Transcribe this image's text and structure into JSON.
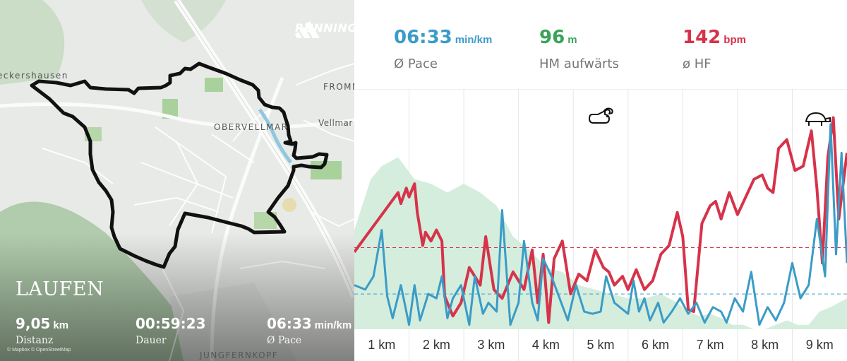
{
  "map": {
    "place_labels": [
      "eckershausen",
      "FROMM",
      "OBERVELLMAR",
      "Vellmar",
      "JUNGFERNKOPF"
    ],
    "brand_text": "RUNNING",
    "brand_logo_icon": "adidas-logo-icon",
    "attribution": "© Mapbox  © OpenStreetMap",
    "route_color": "#111111"
  },
  "summary": {
    "title": "LAUFEN",
    "distance": {
      "value": "9,05",
      "unit": "km",
      "label": "Distanz"
    },
    "duration": {
      "value": "00:59:23",
      "label": "Dauer"
    },
    "pace": {
      "value": "06:33",
      "unit": "min/km",
      "label": "Ø Pace"
    }
  },
  "metrics": {
    "pace": {
      "value": "06:33",
      "unit": "min/km",
      "label": "Ø Pace",
      "color": "#3a9cc7"
    },
    "elevation": {
      "value": "96",
      "unit": "m",
      "label": "HM aufwärts",
      "color": "#3aa35a"
    },
    "heart_rate": {
      "value": "142",
      "unit": "bpm",
      "label": "ø HF",
      "color": "#d6334a"
    }
  },
  "chart_data": {
    "type": "line",
    "xlabel": "",
    "ylabel": "",
    "x_tick_labels": [
      "1 km",
      "2 km",
      "3 km",
      "4 km",
      "5 km",
      "6 km",
      "7 km",
      "8 km",
      "9 km"
    ],
    "xlim": [
      0.5,
      9.5
    ],
    "grid": "vertical",
    "fast_icon": "rabbit-icon",
    "slow_icon": "turtle-icon",
    "series": [
      {
        "color": "#d6334a",
        "avg_y": 0.37,
        "x": [
          0.5,
          1.3,
          1.35,
          1.45,
          1.5,
          1.6,
          1.65,
          1.75,
          1.8,
          1.9,
          2.0,
          2.1,
          2.15,
          2.3,
          2.45,
          2.6,
          2.8,
          2.9,
          3.05,
          3.2,
          3.4,
          3.6,
          3.75,
          3.85,
          3.95,
          4.05,
          4.15,
          4.3,
          4.45,
          4.6,
          4.75,
          4.9,
          5.05,
          5.15,
          5.25,
          5.4,
          5.5,
          5.65,
          5.8,
          5.95,
          6.1,
          6.25,
          6.4,
          6.5,
          6.6,
          6.7,
          6.85,
          7.0,
          7.1,
          7.2,
          7.35,
          7.5,
          7.65,
          7.8,
          7.95,
          8.05,
          8.15,
          8.25,
          8.4,
          8.55,
          8.7,
          8.85,
          8.95,
          9.05,
          9.15,
          9.25,
          9.35,
          9.5
        ],
        "y": [
          0.35,
          0.62,
          0.57,
          0.64,
          0.6,
          0.66,
          0.53,
          0.38,
          0.44,
          0.4,
          0.45,
          0.4,
          0.15,
          0.06,
          0.12,
          0.28,
          0.2,
          0.42,
          0.18,
          0.14,
          0.26,
          0.18,
          0.36,
          0.12,
          0.34,
          0.03,
          0.32,
          0.4,
          0.16,
          0.25,
          0.22,
          0.36,
          0.28,
          0.26,
          0.2,
          0.24,
          0.18,
          0.27,
          0.18,
          0.22,
          0.34,
          0.38,
          0.53,
          0.42,
          0.09,
          0.08,
          0.48,
          0.56,
          0.58,
          0.5,
          0.62,
          0.52,
          0.6,
          0.68,
          0.7,
          0.64,
          0.62,
          0.82,
          0.86,
          0.72,
          0.74,
          0.9,
          0.64,
          0.3,
          0.78,
          0.96,
          0.5,
          0.8
        ]
      },
      {
        "color": "#3a9cc7",
        "avg_y": 0.16,
        "x": [
          0.5,
          0.7,
          0.85,
          1.0,
          1.1,
          1.2,
          1.35,
          1.5,
          1.6,
          1.7,
          1.85,
          2.0,
          2.1,
          2.2,
          2.3,
          2.45,
          2.6,
          2.7,
          2.85,
          2.95,
          3.1,
          3.2,
          3.35,
          3.5,
          3.6,
          3.75,
          3.85,
          3.95,
          4.1,
          4.25,
          4.4,
          4.55,
          4.7,
          4.85,
          5.0,
          5.1,
          5.25,
          5.35,
          5.5,
          5.6,
          5.7,
          5.8,
          5.9,
          6.05,
          6.15,
          6.3,
          6.45,
          6.6,
          6.75,
          6.9,
          7.05,
          7.2,
          7.3,
          7.45,
          7.6,
          7.75,
          7.9,
          8.05,
          8.2,
          8.35,
          8.5,
          8.65,
          8.8,
          8.95,
          9.1,
          9.2,
          9.3,
          9.4,
          9.5
        ],
        "y": [
          0.2,
          0.18,
          0.24,
          0.45,
          0.15,
          0.05,
          0.2,
          0.02,
          0.2,
          0.04,
          0.16,
          0.14,
          0.24,
          0.05,
          0.14,
          0.2,
          0.02,
          0.24,
          0.07,
          0.12,
          0.08,
          0.54,
          0.02,
          0.12,
          0.4,
          0.12,
          0.04,
          0.32,
          0.24,
          0.14,
          0.04,
          0.2,
          0.08,
          0.07,
          0.08,
          0.24,
          0.12,
          0.1,
          0.07,
          0.22,
          0.08,
          0.14,
          0.04,
          0.12,
          0.03,
          0.08,
          0.14,
          0.07,
          0.12,
          0.03,
          0.1,
          0.08,
          0.03,
          0.14,
          0.08,
          0.26,
          0.02,
          0.1,
          0.04,
          0.12,
          0.3,
          0.14,
          0.2,
          0.5,
          0.24,
          0.93,
          0.34,
          0.8,
          0.3
        ]
      },
      {
        "type": "area",
        "color": "#d4eddd",
        "x": [
          0.5,
          0.8,
          1.0,
          1.3,
          1.6,
          1.9,
          2.2,
          2.5,
          2.8,
          3.1,
          3.4,
          3.7,
          4.0,
          4.3,
          4.6,
          4.9,
          5.2,
          5.5,
          5.8,
          6.1,
          6.4,
          6.6,
          6.8,
          7.0,
          7.2,
          7.4,
          7.6,
          7.8,
          8.0,
          8.2,
          8.4,
          8.6,
          8.8,
          9.0,
          9.2,
          9.5
        ],
        "y": [
          0.45,
          0.68,
          0.74,
          0.78,
          0.68,
          0.66,
          0.62,
          0.66,
          0.62,
          0.56,
          0.42,
          0.36,
          0.28,
          0.26,
          0.2,
          0.18,
          0.16,
          0.14,
          0.14,
          0.16,
          0.12,
          0.08,
          0.06,
          0.07,
          0.05,
          0.02,
          0.02,
          0.0,
          0.0,
          0.02,
          0.04,
          0.02,
          0.02,
          0.08,
          0.1,
          0.14
        ]
      }
    ]
  }
}
